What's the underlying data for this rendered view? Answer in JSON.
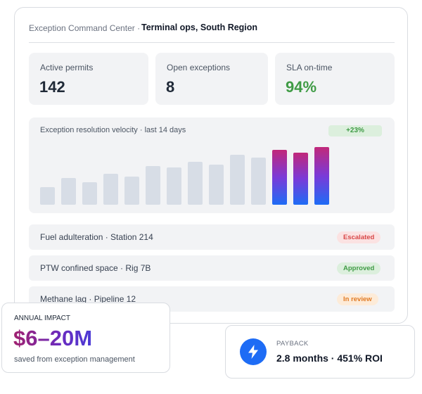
{
  "header": {
    "crumb": "Exception Command Center ·",
    "location": "Terminal ops, South Region"
  },
  "stats": [
    {
      "label": "Active permits",
      "value": "142"
    },
    {
      "label": "Open exceptions",
      "value": "8"
    },
    {
      "label": "SLA on-time",
      "value": "94%",
      "value_color": "#3f9b45"
    }
  ],
  "chart": {
    "title": "Exception resolution velocity · last 14 days",
    "delta": "+23%"
  },
  "chart_data": {
    "type": "bar",
    "title": "Exception resolution velocity · last 14 days",
    "values": [
      24,
      36,
      30,
      42,
      38,
      52,
      50,
      58,
      54,
      68,
      64,
      74,
      70,
      78
    ],
    "highlight_last": 3,
    "highlight_gradient": [
      "#c1287a",
      "#7a3ad8",
      "#1e6cf5"
    ],
    "base_color": "#d7dde6",
    "unit": "relative",
    "ylim": [
      0,
      80
    ],
    "grid": false
  },
  "exceptions": [
    {
      "text": "Fuel adulteration · Station 214",
      "status": "Escalated",
      "tone": "red"
    },
    {
      "text": "PTW confined space · Rig 7B",
      "status": "Approved",
      "tone": "green"
    },
    {
      "text": "Methane lag · Pipeline 12",
      "status": "In review",
      "tone": "orange"
    }
  ],
  "impact": {
    "caption": "ANNUAL IMPACT",
    "value": "$6–20M",
    "sub": "saved from exception management"
  },
  "payback": {
    "caption": "PAYBACK",
    "value": "2.8 months · 451% ROI",
    "icon": "lightning-bolt-icon"
  }
}
